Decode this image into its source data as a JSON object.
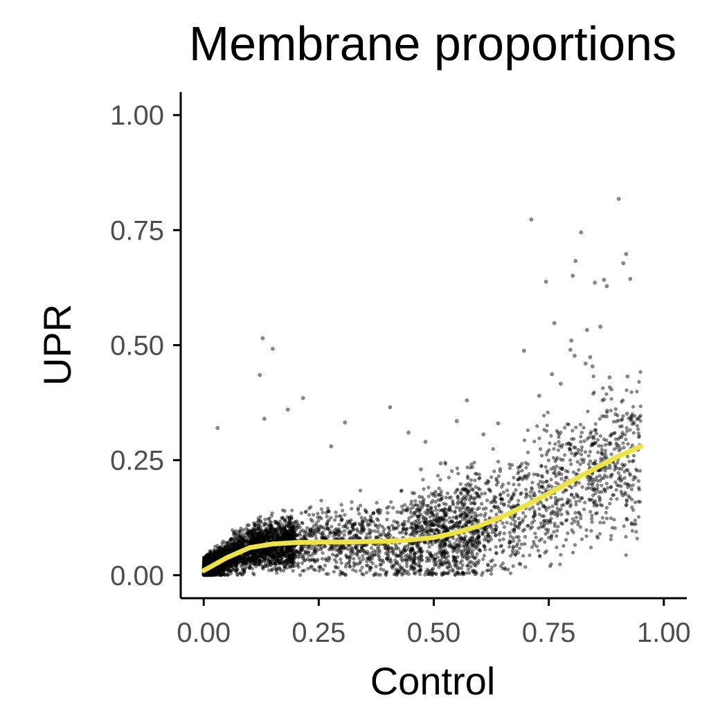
{
  "chart_data": {
    "type": "scatter",
    "title": "Membrane proportions",
    "xlabel": "Control",
    "ylabel": "UPR",
    "xlim": [
      -0.05,
      1.05
    ],
    "ylim": [
      -0.05,
      1.05
    ],
    "x_ticks": [
      0,
      0.25,
      0.5,
      0.75,
      1
    ],
    "x_tick_labels": [
      "0.00",
      "0.25",
      "0.50",
      "0.75",
      "1.00"
    ],
    "y_ticks": [
      0,
      0.25,
      0.5,
      0.75,
      1
    ],
    "y_tick_labels": [
      "0.00",
      "0.25",
      "0.50",
      "0.75",
      "1.00"
    ],
    "grid": false,
    "legend": "none",
    "point_color": "#000000",
    "trend_color": "#ede440",
    "trend_line": {
      "x": [
        0.0,
        0.05,
        0.1,
        0.15,
        0.2,
        0.25,
        0.3,
        0.35,
        0.4,
        0.45,
        0.5,
        0.55,
        0.6,
        0.65,
        0.7,
        0.75,
        0.8,
        0.85,
        0.9,
        0.95
      ],
      "y": [
        0.01,
        0.038,
        0.06,
        0.068,
        0.071,
        0.072,
        0.072,
        0.073,
        0.074,
        0.077,
        0.082,
        0.093,
        0.108,
        0.128,
        0.152,
        0.178,
        0.205,
        0.232,
        0.258,
        0.28
      ]
    },
    "series": [
      {
        "x": [
          0.712,
          0.902,
          0.82,
          0.918,
          0.912,
          0.808,
          0.802,
          0.87,
          0.85,
          0.876,
          0.927,
          0.744,
          0.762,
          0.862,
          0.797,
          0.806,
          0.83,
          0.882,
          0.845,
          0.696,
          0.757,
          0.84,
          0.833,
          0.799,
          0.87,
          0.776,
          0.729,
          0.921,
          0.886,
          0.92,
          0.895,
          0.85,
          0.881,
          0.809,
          0.92,
          0.128,
          0.15,
          0.122,
          0.132,
          0.03,
          0.183,
          0.216,
          0.277,
          0.307,
          0.405,
          0.445,
          0.482,
          0.55,
          0.572,
          0.515,
          0.64,
          0.472,
          0.608
        ],
        "y": [
          0.773,
          0.818,
          0.745,
          0.698,
          0.678,
          0.683,
          0.651,
          0.642,
          0.636,
          0.628,
          0.644,
          0.638,
          0.548,
          0.54,
          0.49,
          0.477,
          0.46,
          0.43,
          0.454,
          0.488,
          0.437,
          0.474,
          0.533,
          0.51,
          0.382,
          0.416,
          0.39,
          0.432,
          0.404,
          0.351,
          0.35,
          0.315,
          0.285,
          0.264,
          0.121,
          0.515,
          0.492,
          0.435,
          0.34,
          0.32,
          0.36,
          0.385,
          0.28,
          0.332,
          0.365,
          0.31,
          0.29,
          0.335,
          0.38,
          0.243,
          0.33,
          0.23,
          0.306
        ]
      }
    ]
  }
}
